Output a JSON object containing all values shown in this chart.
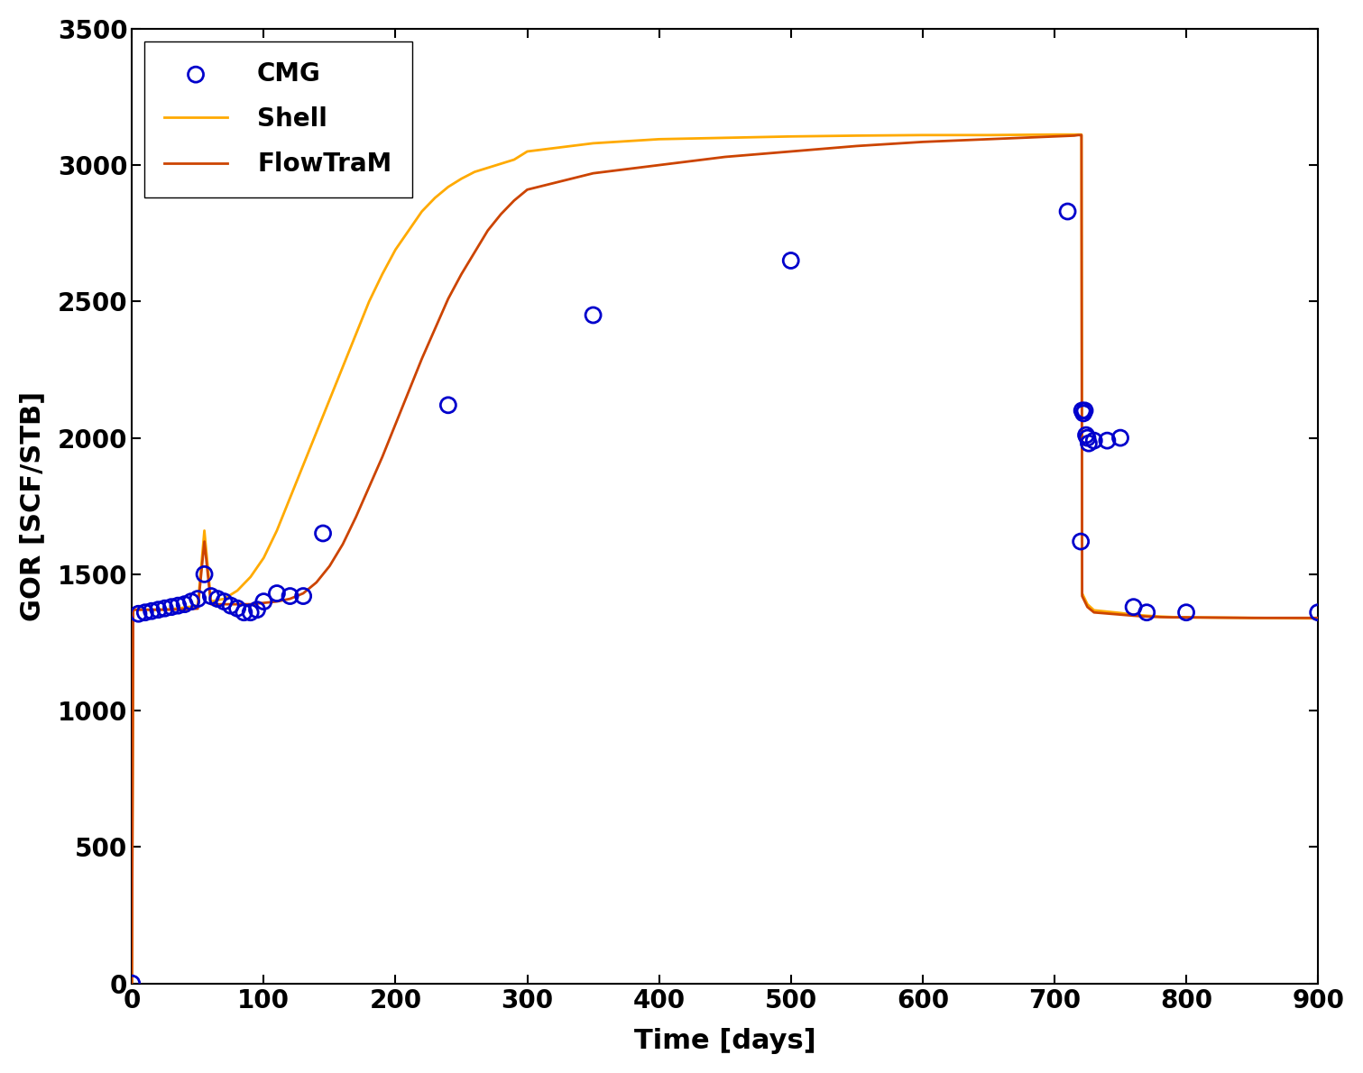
{
  "title": "",
  "xlabel": "Time [days]",
  "ylabel": "GOR [SCF/STB]",
  "xlim": [
    0,
    900
  ],
  "ylim": [
    0,
    3500
  ],
  "xticks": [
    0,
    100,
    200,
    300,
    400,
    500,
    600,
    700,
    800,
    900
  ],
  "yticks": [
    0,
    500,
    1000,
    1500,
    2000,
    2500,
    3000,
    3500
  ],
  "background_color": "#ffffff",
  "cmg_color": "#0000cc",
  "flowtram_color": "#cc4400",
  "shell_color": "#ffaa00",
  "cmg_x": [
    0,
    5,
    10,
    15,
    20,
    25,
    30,
    35,
    40,
    45,
    50,
    55,
    60,
    65,
    70,
    75,
    80,
    85,
    90,
    95,
    100,
    110,
    120,
    130,
    145,
    240,
    350,
    500,
    710,
    720,
    721,
    722,
    723,
    724,
    725,
    726,
    730,
    740,
    750,
    760,
    770,
    800,
    900
  ],
  "cmg_y": [
    0,
    1355,
    1360,
    1365,
    1370,
    1375,
    1380,
    1385,
    1390,
    1400,
    1410,
    1500,
    1420,
    1410,
    1400,
    1385,
    1375,
    1360,
    1360,
    1370,
    1400,
    1430,
    1420,
    1420,
    1650,
    2120,
    2450,
    2650,
    2830,
    1620,
    2100,
    2090,
    2100,
    2010,
    2000,
    1980,
    1990,
    1990,
    2000,
    1380,
    1360,
    1360,
    1360
  ],
  "flowtram_x": [
    0,
    1,
    5,
    10,
    20,
    30,
    40,
    50,
    55,
    60,
    70,
    80,
    90,
    100,
    110,
    120,
    130,
    140,
    150,
    160,
    170,
    180,
    190,
    200,
    210,
    220,
    230,
    240,
    250,
    260,
    270,
    280,
    290,
    300,
    350,
    400,
    450,
    500,
    550,
    600,
    650,
    700,
    715,
    718,
    720,
    720.5,
    721,
    725,
    730,
    750,
    760,
    770,
    780,
    790,
    800,
    850,
    900
  ],
  "flowtram_y": [
    0,
    1370,
    1370,
    1370,
    1370,
    1370,
    1372,
    1374,
    1620,
    1390,
    1390,
    1390,
    1390,
    1395,
    1400,
    1410,
    1430,
    1470,
    1530,
    1610,
    1710,
    1820,
    1930,
    2050,
    2170,
    2290,
    2400,
    2510,
    2600,
    2680,
    2760,
    2820,
    2870,
    2910,
    2970,
    3000,
    3030,
    3050,
    3070,
    3085,
    3095,
    3105,
    3108,
    3110,
    3110,
    3110,
    1420,
    1380,
    1360,
    1352,
    1348,
    1345,
    1343,
    1342,
    1342,
    1340,
    1340
  ],
  "shell_x": [
    0,
    1,
    5,
    10,
    20,
    30,
    40,
    50,
    55,
    60,
    70,
    80,
    90,
    100,
    110,
    120,
    130,
    140,
    150,
    160,
    170,
    180,
    190,
    200,
    210,
    220,
    230,
    240,
    250,
    260,
    270,
    280,
    290,
    300,
    350,
    400,
    450,
    500,
    550,
    600,
    650,
    700,
    715,
    718,
    720,
    720.5,
    721,
    725,
    730,
    750,
    760,
    770,
    780,
    790,
    800,
    850,
    900
  ],
  "shell_y": [
    0,
    1370,
    1370,
    1370,
    1370,
    1372,
    1378,
    1385,
    1660,
    1400,
    1410,
    1440,
    1490,
    1560,
    1660,
    1780,
    1900,
    2020,
    2140,
    2260,
    2380,
    2500,
    2600,
    2690,
    2760,
    2830,
    2880,
    2920,
    2950,
    2975,
    2990,
    3005,
    3020,
    3050,
    3080,
    3095,
    3100,
    3105,
    3108,
    3110,
    3110,
    3112,
    3112,
    3112,
    3112,
    3112,
    1430,
    1390,
    1368,
    1358,
    1352,
    1348,
    1345,
    1343,
    1342,
    1340,
    1338
  ]
}
